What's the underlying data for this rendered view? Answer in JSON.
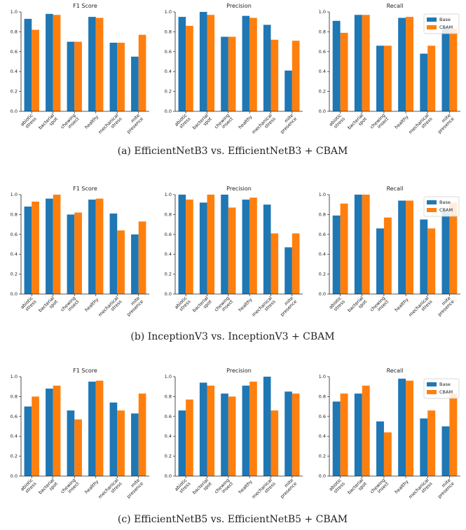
{
  "chart_data": [
    {
      "type": "bar",
      "title": "F1 Score",
      "categories": [
        "abiotic\nstress",
        "bacterial\nspot",
        "chewing\ninsect",
        "healthy",
        "mechanical\nstress",
        "mite\npresence"
      ],
      "series": [
        {
          "color": "#1f77b4",
          "values": [
            0.93,
            0.98,
            0.7,
            0.95,
            0.69,
            0.55
          ]
        },
        {
          "color": "#ff7f0e",
          "values": [
            0.82,
            0.97,
            0.7,
            0.94,
            0.69,
            0.77
          ]
        }
      ],
      "ylim": [
        0,
        1
      ],
      "yticks": [
        {
          "value": 0,
          "label": "0.0"
        },
        {
          "value": 0.2,
          "label": "0.2"
        },
        {
          "value": 0.4,
          "label": "0.4"
        },
        {
          "value": 0.6,
          "label": "0.6"
        },
        {
          "value": 0.8,
          "label": "0.8"
        },
        {
          "value": 1,
          "label": "1.0"
        }
      ]
    },
    {
      "type": "bar",
      "title": "Precision",
      "categories": [
        "abiotic\nstress",
        "bacterial\nspot",
        "chewing\ninsect",
        "healthy",
        "mechanical\nstress",
        "mite\npresence"
      ],
      "series": [
        {
          "color": "#1f77b4",
          "values": [
            0.95,
            1.0,
            0.75,
            0.96,
            0.87,
            0.41
          ]
        },
        {
          "color": "#ff7f0e",
          "values": [
            0.86,
            0.97,
            0.75,
            0.94,
            0.72,
            0.71
          ]
        }
      ],
      "ylim": [
        0,
        1
      ],
      "yticks": [
        {
          "value": 0,
          "label": "0.0"
        },
        {
          "value": 0.2,
          "label": "0.2"
        },
        {
          "value": 0.4,
          "label": "0.4"
        },
        {
          "value": 0.6,
          "label": "0.6"
        },
        {
          "value": 0.8,
          "label": "0.8"
        },
        {
          "value": 1,
          "label": "1.0"
        }
      ]
    },
    {
      "type": "bar",
      "title": "Recall",
      "categories": [
        "abiotic\nstress",
        "bacterial\nspot",
        "chewing\ninsect",
        "healthy",
        "mechanical\nstress",
        "mite\npresence"
      ],
      "series": [
        {
          "name": "Base",
          "color": "#1f77b4",
          "values": [
            0.91,
            0.97,
            0.66,
            0.94,
            0.58,
            0.83
          ]
        },
        {
          "name": "CBAM",
          "color": "#ff7f0e",
          "values": [
            0.79,
            0.97,
            0.66,
            0.95,
            0.66,
            0.83
          ]
        }
      ],
      "ylim": [
        0,
        1
      ],
      "yticks": [
        {
          "value": 0,
          "label": "0.0"
        },
        {
          "value": 0.2,
          "label": "0.2"
        },
        {
          "value": 0.4,
          "label": "0.4"
        },
        {
          "value": 0.6,
          "label": "0.6"
        },
        {
          "value": 0.8,
          "label": "0.8"
        },
        {
          "value": 1,
          "label": "1.0"
        }
      ],
      "legend": "upper right"
    },
    {
      "type": "bar",
      "title": "F1 Score",
      "categories": [
        "abiotic\nstress",
        "bacterial\nspot",
        "chewing\ninsect",
        "healthy",
        "mechanical\nstress",
        "mite\npresence"
      ],
      "series": [
        {
          "color": "#1f77b4",
          "values": [
            0.88,
            0.96,
            0.8,
            0.95,
            0.81,
            0.6
          ]
        },
        {
          "color": "#ff7f0e",
          "values": [
            0.93,
            1.0,
            0.82,
            0.96,
            0.64,
            0.73
          ]
        }
      ],
      "ylim": [
        0,
        1
      ],
      "yticks": [
        {
          "value": 0,
          "label": "0.0"
        },
        {
          "value": 0.2,
          "label": "0.2"
        },
        {
          "value": 0.4,
          "label": "0.4"
        },
        {
          "value": 0.6,
          "label": "0.6"
        },
        {
          "value": 0.8,
          "label": "0.8"
        },
        {
          "value": 1,
          "label": "1.0"
        }
      ]
    },
    {
      "type": "bar",
      "title": "Precision",
      "categories": [
        "abiotic\nstress",
        "bacterial\nspot",
        "chewing\ninsect",
        "healthy",
        "mechanical\nstress",
        "mite\npresence"
      ],
      "series": [
        {
          "color": "#1f77b4",
          "values": [
            1.0,
            0.92,
            1.0,
            0.95,
            0.9,
            0.47
          ]
        },
        {
          "color": "#ff7f0e",
          "values": [
            0.95,
            1.0,
            0.87,
            0.97,
            0.61,
            0.61
          ]
        }
      ],
      "ylim": [
        0,
        1
      ],
      "yticks": [
        {
          "value": 0,
          "label": "0.0"
        },
        {
          "value": 0.2,
          "label": "0.2"
        },
        {
          "value": 0.4,
          "label": "0.4"
        },
        {
          "value": 0.6,
          "label": "0.6"
        },
        {
          "value": 0.8,
          "label": "0.8"
        },
        {
          "value": 1,
          "label": "1.0"
        }
      ]
    },
    {
      "type": "bar",
      "title": "Recall",
      "categories": [
        "abiotic\nstress",
        "bacterial\nspot",
        "chewing\ninsect",
        "healthy",
        "mechanical\nstress",
        "mite\npresence"
      ],
      "series": [
        {
          "name": "Base",
          "color": "#1f77b4",
          "values": [
            0.79,
            1.0,
            0.66,
            0.94,
            0.75,
            0.83
          ]
        },
        {
          "name": "CBAM",
          "color": "#ff7f0e",
          "values": [
            0.91,
            1.0,
            0.77,
            0.94,
            0.66,
            0.92
          ]
        }
      ],
      "ylim": [
        0,
        1
      ],
      "yticks": [
        {
          "value": 0,
          "label": "0.0"
        },
        {
          "value": 0.2,
          "label": "0.2"
        },
        {
          "value": 0.4,
          "label": "0.4"
        },
        {
          "value": 0.6,
          "label": "0.6"
        },
        {
          "value": 0.8,
          "label": "0.8"
        },
        {
          "value": 1,
          "label": "1.0"
        }
      ],
      "legend": "upper right"
    },
    {
      "type": "bar",
      "title": "F1 Score",
      "categories": [
        "abiotic\nstress",
        "bacterial\nspot",
        "chewing\ninsect",
        "healthy",
        "mechanical\nstress",
        "mite\npresence"
      ],
      "series": [
        {
          "color": "#1f77b4",
          "values": [
            0.7,
            0.88,
            0.66,
            0.95,
            0.74,
            0.63
          ]
        },
        {
          "color": "#ff7f0e",
          "values": [
            0.8,
            0.91,
            0.57,
            0.96,
            0.66,
            0.83
          ]
        }
      ],
      "ylim": [
        0,
        1
      ],
      "yticks": [
        {
          "value": 0,
          "label": "0.0"
        },
        {
          "value": 0.2,
          "label": "0.2"
        },
        {
          "value": 0.4,
          "label": "0.4"
        },
        {
          "value": 0.6,
          "label": "0.6"
        },
        {
          "value": 0.8,
          "label": "0.8"
        },
        {
          "value": 1,
          "label": "1.0"
        }
      ]
    },
    {
      "type": "bar",
      "title": "Precision",
      "categories": [
        "abiotic\nstress",
        "bacterial\nspot",
        "chewing\ninsect",
        "healthy",
        "mechanical\nstress",
        "mite\npresence"
      ],
      "series": [
        {
          "color": "#1f77b4",
          "values": [
            0.66,
            0.94,
            0.83,
            0.91,
            1.0,
            0.85
          ]
        },
        {
          "color": "#ff7f0e",
          "values": [
            0.77,
            0.91,
            0.8,
            0.95,
            0.66,
            0.83
          ]
        }
      ],
      "ylim": [
        0,
        1
      ],
      "yticks": [
        {
          "value": 0,
          "label": "0.0"
        },
        {
          "value": 0.2,
          "label": "0.2"
        },
        {
          "value": 0.4,
          "label": "0.4"
        },
        {
          "value": 0.6,
          "label": "0.6"
        },
        {
          "value": 0.8,
          "label": "0.8"
        },
        {
          "value": 1,
          "label": "1.0"
        }
      ]
    },
    {
      "type": "bar",
      "title": "Recall",
      "categories": [
        "abiotic\nstress",
        "bacterial\nspot",
        "chewing\ninsect",
        "healthy",
        "mechanical\nstress",
        "mite\npresence"
      ],
      "series": [
        {
          "name": "Base",
          "color": "#1f77b4",
          "values": [
            0.75,
            0.83,
            0.55,
            0.98,
            0.58,
            0.5
          ]
        },
        {
          "name": "CBAM",
          "color": "#ff7f0e",
          "values": [
            0.83,
            0.91,
            0.44,
            0.96,
            0.66,
            0.83
          ]
        }
      ],
      "ylim": [
        0,
        1
      ],
      "yticks": [
        {
          "value": 0,
          "label": "0.0"
        },
        {
          "value": 0.2,
          "label": "0.2"
        },
        {
          "value": 0.4,
          "label": "0.4"
        },
        {
          "value": 0.6,
          "label": "0.6"
        },
        {
          "value": 0.8,
          "label": "0.8"
        },
        {
          "value": 1,
          "label": "1.0"
        }
      ],
      "legend": "upper right"
    }
  ],
  "captions": [
    "(a) EfficientNetB3 vs. EfficientNetB3 + CBAM",
    "(b) InceptionV3 vs. InceptionV3 + CBAM",
    "(c) EfficientNetB5 vs. EfficientNetB5 + CBAM"
  ]
}
